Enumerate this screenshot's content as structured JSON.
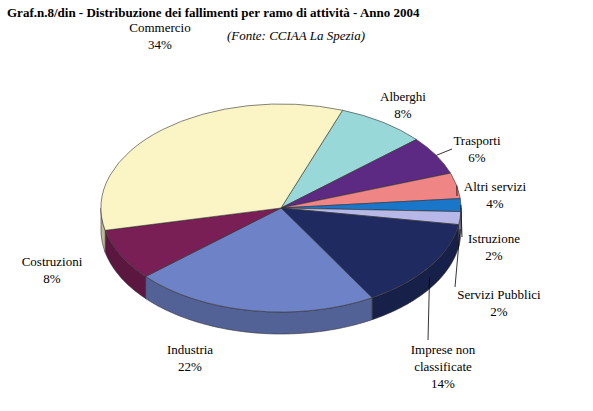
{
  "chart_data": {
    "type": "pie",
    "title": "Graf.n.8/din - Distribuzione dei fallimenti per ramo di attività - Anno 2004",
    "subtitle": "(Fonte: CCIAA La Spezia)",
    "categories": [
      "Alberghi",
      "Trasporti",
      "Altri servizi",
      "Istruzione",
      "Servizi Pubblici",
      "Imprese non classificate",
      "Industria",
      "Costruzioni",
      "Commercio"
    ],
    "values": [
      8,
      6,
      4,
      2,
      2,
      14,
      22,
      8,
      34
    ],
    "value_labels": [
      "8%",
      "6%",
      "4%",
      "2%",
      "2%",
      "14%",
      "22%",
      "8%",
      "34%"
    ],
    "colors": [
      "#99d8d8",
      "#5c2a82",
      "#f08585",
      "#1976c8",
      "#b8b8e8",
      "#1e2a60",
      "#6e82c8",
      "#7a1f55",
      "#fbf5c6"
    ],
    "data_labels": true
  }
}
